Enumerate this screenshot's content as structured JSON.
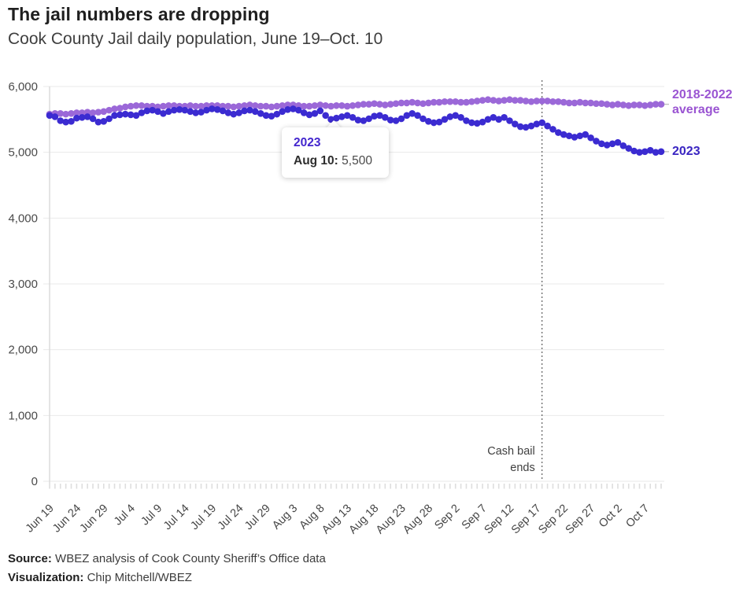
{
  "header": {
    "title": "The jail numbers are dropping",
    "subtitle": "Cook County Jail daily population, June 19–Oct. 10"
  },
  "legend": {
    "average_label": "2018-2022 average",
    "average_color": "#9a54d2",
    "y2023_label": "2023",
    "y2023_color": "#3a25c2"
  },
  "tooltip": {
    "series": "2023",
    "series_color": "#4326ce",
    "date_label": "Aug 10:",
    "value": "5,500",
    "point_index": 52
  },
  "footer": {
    "source_label": "Source:",
    "source_text": "WBEZ analysis of Cook County Sheriff’s Office data",
    "viz_label": "Visualization:",
    "viz_text": "Chip Mitchell/WBEZ"
  },
  "chart_data": {
    "type": "scatter",
    "title": "Cook County Jail daily population, June 19–Oct. 10",
    "ylim": [
      0,
      6000
    ],
    "yticks": [
      0,
      1000,
      2000,
      3000,
      4000,
      5000,
      6000
    ],
    "ytick_labels": [
      "0",
      "1,000",
      "2,000",
      "3,000",
      "4,000",
      "5,000",
      "6,000"
    ],
    "grid_on": true,
    "grid_color": "#e9e9e9",
    "axis_color": "#d9d9d9",
    "tick_color": "#dedede",
    "tick_label_color": "#4a4a4a",
    "legend_position": "right-end-of-line",
    "x_tick_every": 5,
    "x_tick_labels": [
      "Jun 19",
      "Jun 24",
      "Jun 29",
      "Jul 4",
      "Jul 9",
      "Jul 14",
      "Jul 19",
      "Jul 24",
      "Jul 29",
      "Aug 3",
      "Aug 8",
      "Aug 13",
      "Aug 18",
      "Aug 23",
      "Aug 28",
      "Sep 2",
      "Sep 7",
      "Sep 12",
      "Sep 17",
      "Sep 22",
      "Sep 27",
      "Oct 2",
      "Oct 7"
    ],
    "annotation": {
      "lines": [
        "Cash bail",
        "ends"
      ],
      "category": "Sep 18",
      "index": 91,
      "color": "#3f3f3f",
      "line_style": "dotted"
    },
    "categories": [
      "Jun 19",
      "Jun 20",
      "Jun 21",
      "Jun 22",
      "Jun 23",
      "Jun 24",
      "Jun 25",
      "Jun 26",
      "Jun 27",
      "Jun 28",
      "Jun 29",
      "Jun 30",
      "Jul 1",
      "Jul 2",
      "Jul 3",
      "Jul 4",
      "Jul 5",
      "Jul 6",
      "Jul 7",
      "Jul 8",
      "Jul 9",
      "Jul 10",
      "Jul 11",
      "Jul 12",
      "Jul 13",
      "Jul 14",
      "Jul 15",
      "Jul 16",
      "Jul 17",
      "Jul 18",
      "Jul 19",
      "Jul 20",
      "Jul 21",
      "Jul 22",
      "Jul 23",
      "Jul 24",
      "Jul 25",
      "Jul 26",
      "Jul 27",
      "Jul 28",
      "Jul 29",
      "Jul 30",
      "Jul 31",
      "Aug 1",
      "Aug 2",
      "Aug 3",
      "Aug 4",
      "Aug 5",
      "Aug 6",
      "Aug 7",
      "Aug 8",
      "Aug 9",
      "Aug 10",
      "Aug 11",
      "Aug 12",
      "Aug 13",
      "Aug 14",
      "Aug 15",
      "Aug 16",
      "Aug 17",
      "Aug 18",
      "Aug 19",
      "Aug 20",
      "Aug 21",
      "Aug 22",
      "Aug 23",
      "Aug 24",
      "Aug 25",
      "Aug 26",
      "Aug 27",
      "Aug 28",
      "Aug 29",
      "Aug 30",
      "Aug 31",
      "Sep 1",
      "Sep 2",
      "Sep 3",
      "Sep 4",
      "Sep 5",
      "Sep 6",
      "Sep 7",
      "Sep 8",
      "Sep 9",
      "Sep 10",
      "Sep 11",
      "Sep 12",
      "Sep 13",
      "Sep 14",
      "Sep 15",
      "Sep 16",
      "Sep 17",
      "Sep 18",
      "Sep 19",
      "Sep 20",
      "Sep 21",
      "Sep 22",
      "Sep 23",
      "Sep 24",
      "Sep 25",
      "Sep 26",
      "Sep 27",
      "Sep 28",
      "Sep 29",
      "Sep 30",
      "Oct 1",
      "Oct 2",
      "Oct 3",
      "Oct 4",
      "Oct 5",
      "Oct 6",
      "Oct 7",
      "Oct 8",
      "Oct 9",
      "Oct 10"
    ],
    "series": [
      {
        "name": "2018-2022 average",
        "color": "#9b68d8",
        "values": [
          5580,
          5590,
          5590,
          5580,
          5590,
          5600,
          5600,
          5610,
          5600,
          5610,
          5620,
          5640,
          5660,
          5670,
          5690,
          5700,
          5710,
          5710,
          5700,
          5700,
          5690,
          5700,
          5710,
          5710,
          5700,
          5700,
          5710,
          5700,
          5700,
          5710,
          5710,
          5710,
          5700,
          5700,
          5690,
          5700,
          5710,
          5720,
          5710,
          5700,
          5700,
          5690,
          5700,
          5710,
          5720,
          5720,
          5710,
          5700,
          5700,
          5710,
          5720,
          5710,
          5700,
          5710,
          5710,
          5700,
          5710,
          5720,
          5730,
          5730,
          5740,
          5730,
          5720,
          5730,
          5740,
          5750,
          5750,
          5760,
          5750,
          5740,
          5750,
          5760,
          5760,
          5770,
          5770,
          5770,
          5760,
          5760,
          5770,
          5780,
          5790,
          5800,
          5790,
          5780,
          5790,
          5800,
          5790,
          5790,
          5780,
          5770,
          5780,
          5780,
          5780,
          5770,
          5770,
          5760,
          5750,
          5750,
          5760,
          5750,
          5750,
          5740,
          5740,
          5730,
          5720,
          5730,
          5720,
          5710,
          5720,
          5720,
          5710,
          5720,
          5730,
          5730
        ]
      },
      {
        "name": "2023",
        "color": "#3b2bd1",
        "values": [
          5560,
          5540,
          5480,
          5460,
          5470,
          5520,
          5530,
          5540,
          5510,
          5460,
          5470,
          5510,
          5560,
          5570,
          5580,
          5570,
          5560,
          5600,
          5630,
          5640,
          5620,
          5590,
          5620,
          5640,
          5650,
          5640,
          5620,
          5600,
          5610,
          5640,
          5660,
          5650,
          5630,
          5600,
          5580,
          5600,
          5630,
          5640,
          5620,
          5590,
          5560,
          5550,
          5580,
          5620,
          5650,
          5660,
          5640,
          5600,
          5570,
          5590,
          5630,
          5560,
          5500,
          5520,
          5540,
          5560,
          5530,
          5490,
          5480,
          5510,
          5550,
          5560,
          5530,
          5490,
          5480,
          5510,
          5560,
          5590,
          5560,
          5510,
          5470,
          5450,
          5460,
          5500,
          5540,
          5560,
          5530,
          5480,
          5450,
          5440,
          5460,
          5500,
          5530,
          5500,
          5530,
          5480,
          5430,
          5390,
          5380,
          5400,
          5430,
          5450,
          5400,
          5350,
          5300,
          5270,
          5250,
          5230,
          5250,
          5270,
          5220,
          5170,
          5130,
          5110,
          5130,
          5150,
          5100,
          5060,
          5020,
          5000,
          5010,
          5030,
          5000,
          5010
        ]
      }
    ]
  }
}
